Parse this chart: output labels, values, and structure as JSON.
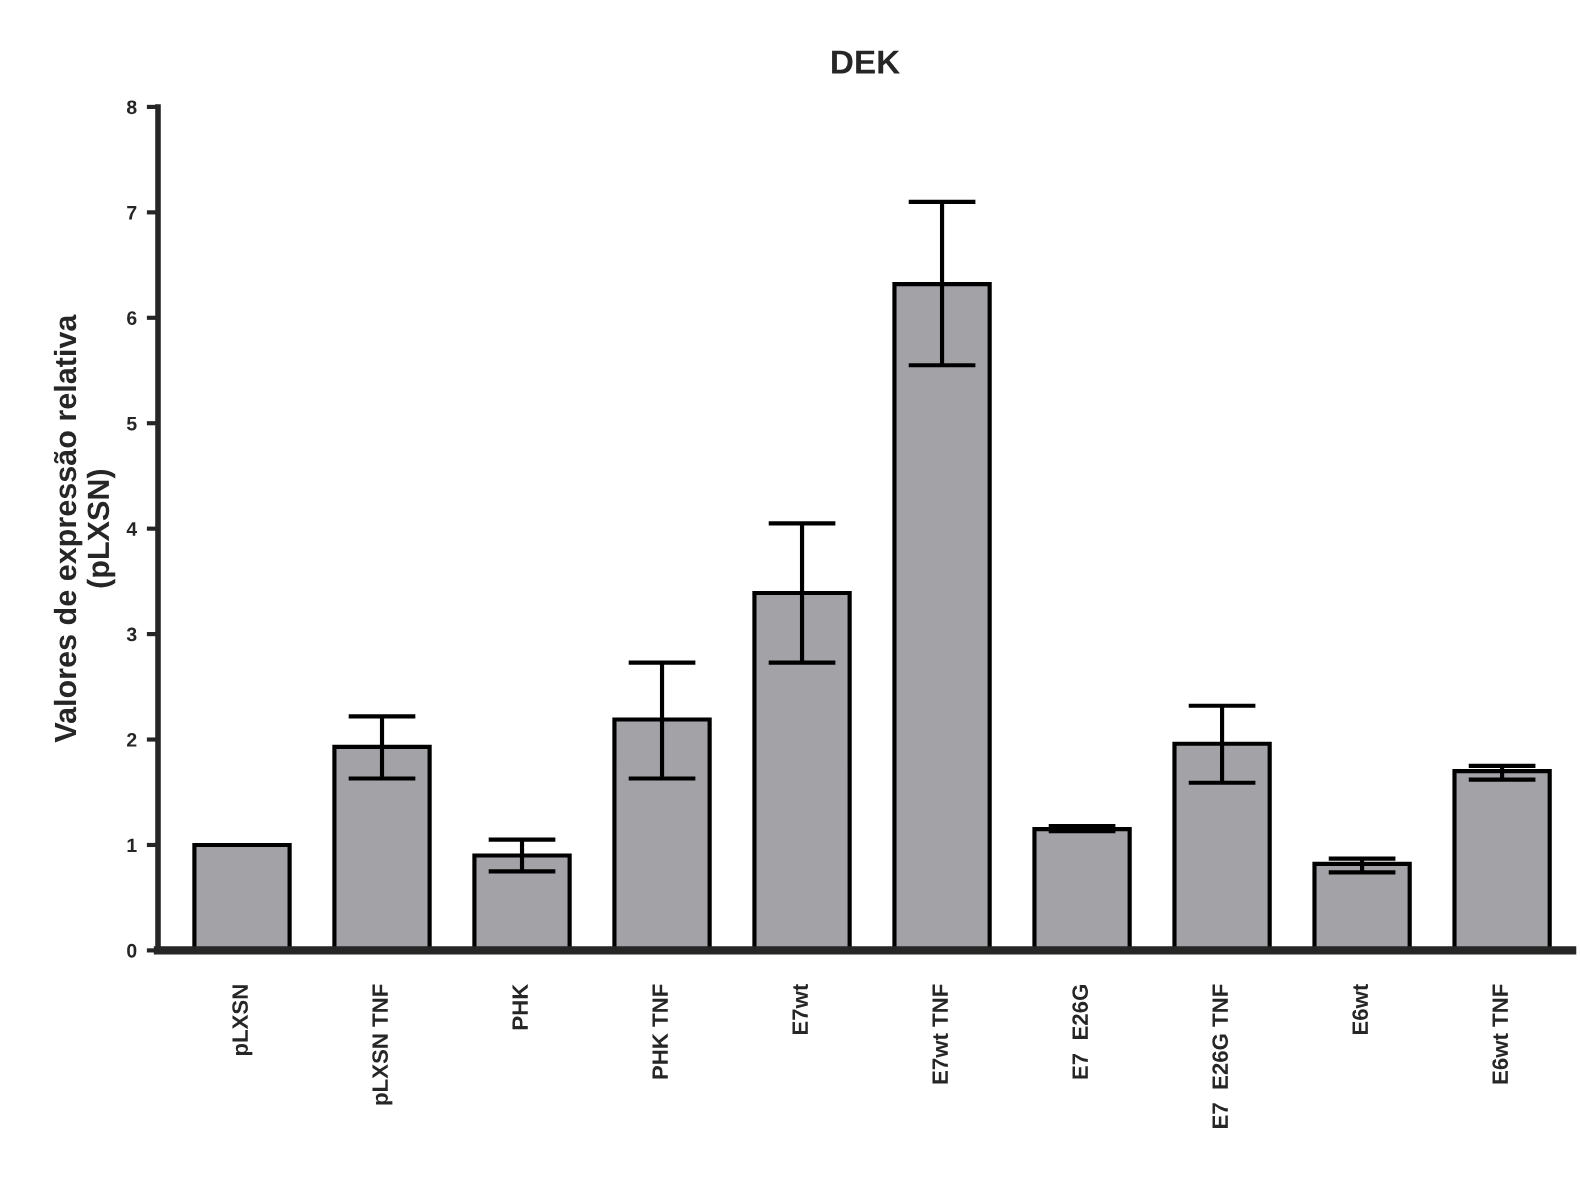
{
  "chart_data": {
    "type": "bar",
    "title": "DEK",
    "ylabel": "Valores de expressão relativa\n(pLXSN)",
    "categories": [
      "pLXSN",
      "pLXSN TNF",
      "PHK",
      "PHK TNF",
      "E7wt",
      "E7wt TNF",
      "E7  E26G",
      "E7  E26G TNF",
      "E6wt",
      "E6wt TNF"
    ],
    "values": [
      1.0,
      1.93,
      0.9,
      2.19,
      3.39,
      6.32,
      1.15,
      1.96,
      0.82,
      1.7
    ],
    "errors": [
      null,
      [
        1.63,
        2.22
      ],
      [
        0.75,
        1.05
      ],
      [
        1.63,
        2.73
      ],
      [
        2.73,
        4.05
      ],
      [
        5.55,
        7.1
      ],
      [
        1.13,
        1.18
      ],
      [
        1.59,
        2.32
      ],
      [
        0.74,
        0.87
      ],
      [
        1.62,
        1.75
      ]
    ],
    "color": "#a3a2a7",
    "ylim": [
      0,
      8
    ],
    "yticks": [
      0,
      1,
      2,
      3,
      4,
      5,
      6,
      7,
      8
    ],
    "grid": false
  }
}
